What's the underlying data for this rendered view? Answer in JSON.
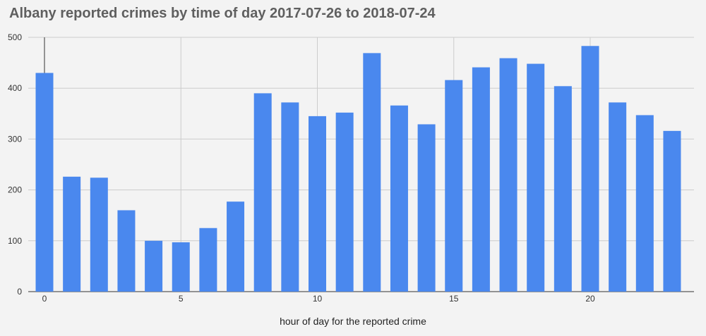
{
  "chart_data": {
    "type": "bar",
    "title": "Albany reported crimes by time of day 2017-07-26 to 2018-07-24",
    "xlabel": "hour of day for the reported crime",
    "ylabel": "",
    "x": [
      0,
      1,
      2,
      3,
      4,
      5,
      6,
      7,
      8,
      9,
      10,
      11,
      12,
      13,
      14,
      15,
      16,
      17,
      18,
      19,
      20,
      21,
      22,
      23
    ],
    "values": [
      430,
      226,
      224,
      160,
      100,
      97,
      125,
      177,
      390,
      372,
      345,
      352,
      469,
      366,
      329,
      416,
      441,
      459,
      448,
      404,
      483,
      372,
      347,
      316
    ],
    "xticks": [
      0,
      5,
      10,
      15,
      20
    ],
    "yticks": [
      0,
      100,
      200,
      300,
      400,
      500
    ],
    "ylim": [
      0,
      500
    ],
    "grid": true,
    "legend": "none",
    "colors": {
      "bar": "#4a88ee",
      "grid": "#cccccc",
      "background": "#f3f3f3"
    }
  }
}
